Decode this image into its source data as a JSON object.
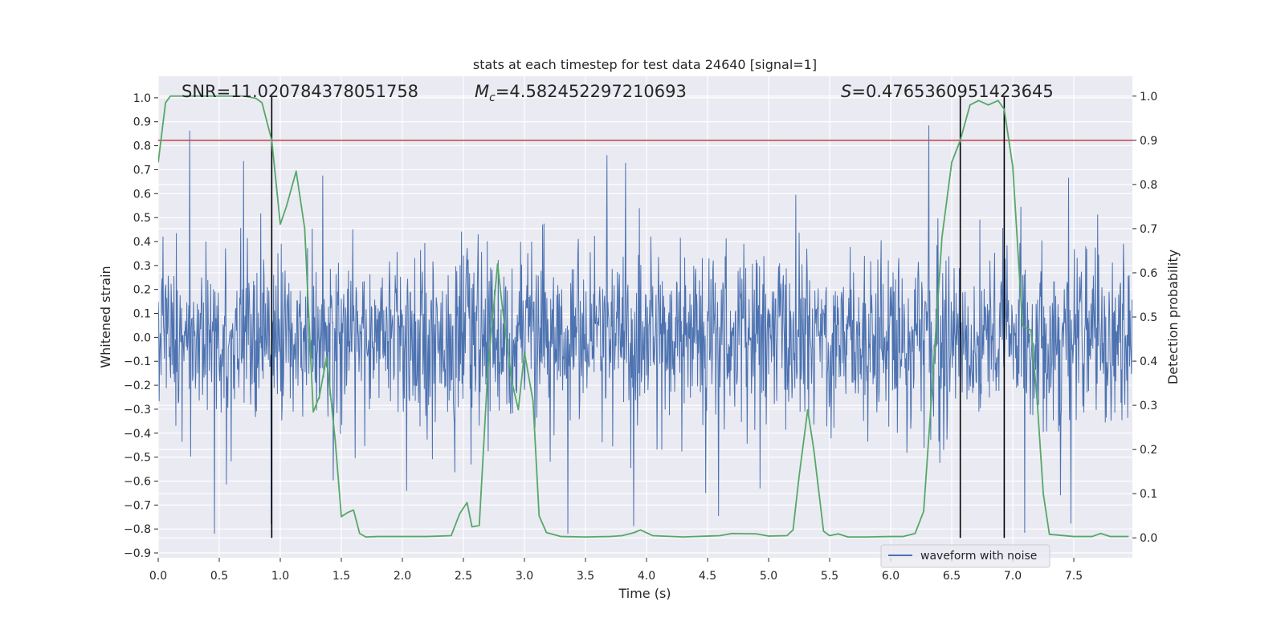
{
  "chart_data": {
    "type": "line",
    "title": "stats at each timestep for test data 24640 [signal=1]",
    "xlabel": "Time (s)",
    "ylabel_left": "Whitened strain",
    "ylabel_right": "Detection probability",
    "xlim": [
      0.0,
      7.98
    ],
    "ylim_left": [
      -0.92,
      1.09
    ],
    "ylim_right": [
      -0.045,
      1.045
    ],
    "grid": true,
    "x_ticks": [
      "0.0",
      "0.5",
      "1.0",
      "1.5",
      "2.0",
      "2.5",
      "3.0",
      "3.5",
      "4.0",
      "4.5",
      "5.0",
      "5.5",
      "6.0",
      "6.5",
      "7.0",
      "7.5"
    ],
    "y_left_ticks": [
      "1.0",
      "0.9",
      "0.8",
      "0.7",
      "0.6",
      "0.5",
      "0.4",
      "0.3",
      "0.2",
      "0.1",
      "0.0",
      "−0.1",
      "−0.2",
      "−0.3",
      "−0.4",
      "−0.5",
      "−0.6",
      "−0.7",
      "−0.8",
      "−0.9"
    ],
    "y_right_ticks": [
      "1.0",
      "0.9",
      "0.8",
      "0.7",
      "0.6",
      "0.5",
      "0.4",
      "0.3",
      "0.2",
      "0.1",
      "0.0"
    ],
    "annotations": {
      "snr": "SNR=11.020784378051758",
      "mc_symbol": "M",
      "mc_sub": "c",
      "mc_value": "=4.582452297210693",
      "s_symbol": "S",
      "s_value": "=0.4765360951423645"
    },
    "threshold": {
      "value": 0.9,
      "color": "#c44e52"
    },
    "detection_boundaries": [
      0.93,
      6.57,
      6.93
    ],
    "legend": {
      "placement": "lower-right",
      "entries": [
        "waveform with noise"
      ]
    },
    "series": [
      {
        "name": "waveform with noise",
        "color": "#4c72b0",
        "sample_rate": 256,
        "noise_band": [
          -0.28,
          0.28
        ],
        "approx_range": [
          -0.82,
          1.0
        ]
      },
      {
        "color": "#55a868",
        "x": [
          0.0,
          0.06,
          0.1,
          0.2,
          0.4,
          0.6,
          0.7,
          0.8,
          0.85,
          0.93,
          1.0,
          1.05,
          1.13,
          1.2,
          1.27,
          1.32,
          1.38,
          1.45,
          1.5,
          1.55,
          1.6,
          1.65,
          1.7,
          1.8,
          2.0,
          2.2,
          2.4,
          2.47,
          2.53,
          2.57,
          2.63,
          2.7,
          2.78,
          2.82,
          2.9,
          2.95,
          3.0,
          3.07,
          3.12,
          3.18,
          3.3,
          3.5,
          3.7,
          3.8,
          3.9,
          3.95,
          4.05,
          4.3,
          4.6,
          4.7,
          4.9,
          5.0,
          5.15,
          5.2,
          5.25,
          5.32,
          5.37,
          5.45,
          5.5,
          5.57,
          5.65,
          5.8,
          6.0,
          6.1,
          6.2,
          6.27,
          6.32,
          6.42,
          6.5,
          6.57,
          6.65,
          6.72,
          6.8,
          6.88,
          6.93,
          7.0,
          7.08,
          7.15,
          7.2,
          7.25,
          7.3,
          7.5,
          7.65,
          7.72,
          7.8,
          7.95
        ],
        "values": [
          0.85,
          0.985,
          1.0,
          1.0,
          1.0,
          1.0,
          1.0,
          0.995,
          0.985,
          0.9,
          0.71,
          0.75,
          0.83,
          0.7,
          0.285,
          0.32,
          0.41,
          0.22,
          0.048,
          0.057,
          0.063,
          0.01,
          0.002,
          0.003,
          0.003,
          0.003,
          0.005,
          0.055,
          0.08,
          0.025,
          0.028,
          0.38,
          0.62,
          0.52,
          0.35,
          0.29,
          0.42,
          0.31,
          0.05,
          0.012,
          0.003,
          0.002,
          0.003,
          0.005,
          0.012,
          0.018,
          0.005,
          0.002,
          0.005,
          0.01,
          0.009,
          0.004,
          0.005,
          0.018,
          0.14,
          0.29,
          0.2,
          0.015,
          0.005,
          0.009,
          0.002,
          0.002,
          0.003,
          0.003,
          0.01,
          0.06,
          0.26,
          0.68,
          0.85,
          0.9,
          0.98,
          0.99,
          0.98,
          0.99,
          0.97,
          0.84,
          0.48,
          0.47,
          0.31,
          0.1,
          0.008,
          0.003,
          0.003,
          0.01,
          0.003,
          0.003
        ]
      }
    ]
  }
}
